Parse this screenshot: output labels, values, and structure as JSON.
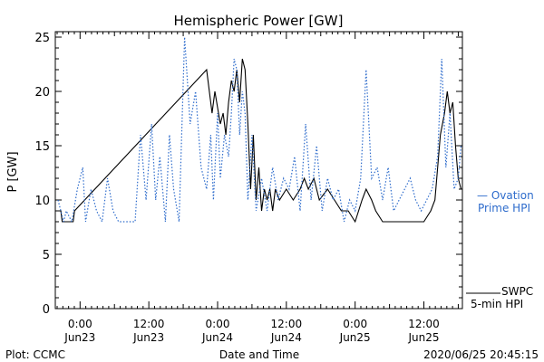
{
  "chart_data": {
    "type": "line",
    "title": "Hemispheric Power [GW]",
    "ylabel": "P [GW]",
    "xlabel": "Date and Time",
    "ylim": [
      0,
      25.5
    ],
    "xlim": [
      -0.18,
      2.78
    ],
    "x_units": "days from 2020/06/23 00:00 UT",
    "yticks": [
      0,
      5,
      10,
      15,
      20,
      25
    ],
    "xticks": [
      {
        "x": 0.0,
        "time": "0:00",
        "date": "Jun23"
      },
      {
        "x": 0.5,
        "time": "12:00",
        "date": "Jun23"
      },
      {
        "x": 1.0,
        "time": "0:00",
        "date": "Jun24"
      },
      {
        "x": 1.5,
        "time": "12:00",
        "date": "Jun24"
      },
      {
        "x": 2.0,
        "time": "0:00",
        "date": "Jun25"
      },
      {
        "x": 2.5,
        "time": "12:00",
        "date": "Jun25"
      }
    ],
    "grid": false,
    "legend_position": "right",
    "series": [
      {
        "name": "SWPC 5-min HPI",
        "color": "#000000",
        "style": "solid",
        "points": [
          [
            -0.18,
            9
          ],
          [
            -0.14,
            9
          ],
          [
            -0.13,
            8
          ],
          [
            -0.05,
            8
          ],
          [
            -0.04,
            9
          ],
          [
            0.92,
            22
          ],
          [
            0.96,
            18
          ],
          [
            0.98,
            20
          ],
          [
            1.02,
            17
          ],
          [
            1.04,
            18
          ],
          [
            1.06,
            16
          ],
          [
            1.08,
            19
          ],
          [
            1.1,
            21
          ],
          [
            1.12,
            20
          ],
          [
            1.14,
            22
          ],
          [
            1.16,
            19
          ],
          [
            1.18,
            23
          ],
          [
            1.2,
            22
          ],
          [
            1.22,
            17
          ],
          [
            1.24,
            11
          ],
          [
            1.26,
            16
          ],
          [
            1.28,
            10
          ],
          [
            1.3,
            13
          ],
          [
            1.32,
            9
          ],
          [
            1.34,
            11
          ],
          [
            1.36,
            10
          ],
          [
            1.38,
            11
          ],
          [
            1.4,
            9
          ],
          [
            1.42,
            11
          ],
          [
            1.45,
            10
          ],
          [
            1.5,
            11
          ],
          [
            1.55,
            10
          ],
          [
            1.6,
            11
          ],
          [
            1.63,
            12
          ],
          [
            1.66,
            11
          ],
          [
            1.7,
            12
          ],
          [
            1.74,
            10
          ],
          [
            1.8,
            11
          ],
          [
            1.85,
            10
          ],
          [
            1.9,
            9
          ],
          [
            1.95,
            9
          ],
          [
            2.0,
            8
          ],
          [
            2.05,
            10
          ],
          [
            2.08,
            11
          ],
          [
            2.12,
            10
          ],
          [
            2.15,
            9
          ],
          [
            2.2,
            8
          ],
          [
            2.25,
            8
          ],
          [
            2.3,
            8
          ],
          [
            2.35,
            8
          ],
          [
            2.4,
            8
          ],
          [
            2.45,
            8
          ],
          [
            2.5,
            8
          ],
          [
            2.55,
            9
          ],
          [
            2.58,
            10
          ],
          [
            2.6,
            13
          ],
          [
            2.62,
            16
          ],
          [
            2.65,
            18
          ],
          [
            2.67,
            20
          ],
          [
            2.69,
            18
          ],
          [
            2.71,
            19
          ],
          [
            2.73,
            15
          ],
          [
            2.75,
            12
          ],
          [
            2.77,
            11
          ]
        ]
      },
      {
        "name": "Ovation Prime HPI",
        "color": "#2e6ccc",
        "style": "dotted",
        "points": [
          [
            -0.16,
            10
          ],
          [
            -0.12,
            8
          ],
          [
            -0.1,
            9
          ],
          [
            -0.06,
            8
          ],
          [
            -0.02,
            11
          ],
          [
            0.02,
            13
          ],
          [
            0.04,
            8
          ],
          [
            0.08,
            11
          ],
          [
            0.12,
            9
          ],
          [
            0.16,
            8
          ],
          [
            0.2,
            12
          ],
          [
            0.24,
            9
          ],
          [
            0.28,
            8
          ],
          [
            0.32,
            8
          ],
          [
            0.36,
            8
          ],
          [
            0.4,
            8
          ],
          [
            0.44,
            16
          ],
          [
            0.48,
            10
          ],
          [
            0.52,
            17
          ],
          [
            0.55,
            10
          ],
          [
            0.58,
            14
          ],
          [
            0.62,
            8
          ],
          [
            0.65,
            16
          ],
          [
            0.68,
            11
          ],
          [
            0.72,
            8
          ],
          [
            0.76,
            25
          ],
          [
            0.8,
            17
          ],
          [
            0.84,
            20
          ],
          [
            0.88,
            13
          ],
          [
            0.92,
            11
          ],
          [
            0.95,
            16
          ],
          [
            0.97,
            10
          ],
          [
            1.0,
            18
          ],
          [
            1.02,
            12
          ],
          [
            1.05,
            16
          ],
          [
            1.08,
            14
          ],
          [
            1.1,
            18
          ],
          [
            1.12,
            23
          ],
          [
            1.14,
            22
          ],
          [
            1.16,
            16
          ],
          [
            1.18,
            20
          ],
          [
            1.2,
            18
          ],
          [
            1.22,
            10
          ],
          [
            1.25,
            16
          ],
          [
            1.28,
            9
          ],
          [
            1.32,
            12
          ],
          [
            1.36,
            9
          ],
          [
            1.4,
            13
          ],
          [
            1.44,
            10
          ],
          [
            1.48,
            12
          ],
          [
            1.52,
            11
          ],
          [
            1.56,
            14
          ],
          [
            1.6,
            9
          ],
          [
            1.64,
            17
          ],
          [
            1.68,
            10
          ],
          [
            1.72,
            15
          ],
          [
            1.76,
            9
          ],
          [
            1.8,
            12
          ],
          [
            1.84,
            10
          ],
          [
            1.88,
            11
          ],
          [
            1.92,
            8
          ],
          [
            1.96,
            10
          ],
          [
            2.0,
            9
          ],
          [
            2.04,
            12
          ],
          [
            2.08,
            22
          ],
          [
            2.12,
            12
          ],
          [
            2.16,
            13
          ],
          [
            2.2,
            10
          ],
          [
            2.24,
            13
          ],
          [
            2.28,
            9
          ],
          [
            2.32,
            10
          ],
          [
            2.36,
            11
          ],
          [
            2.4,
            12
          ],
          [
            2.44,
            10
          ],
          [
            2.48,
            9
          ],
          [
            2.52,
            10
          ],
          [
            2.56,
            11
          ],
          [
            2.6,
            14
          ],
          [
            2.63,
            23
          ],
          [
            2.66,
            13
          ],
          [
            2.69,
            18
          ],
          [
            2.72,
            11
          ],
          [
            2.75,
            12
          ],
          [
            2.77,
            15
          ]
        ]
      }
    ],
    "legend": {
      "ovation_line1": "— Ovation",
      "ovation_line2": "Prime HPI",
      "swpc_line1": "SWPC",
      "swpc_line2": "5-min HPI"
    }
  },
  "footer": {
    "plot_label": "Plot: CCMC",
    "xaxis_title": "Date and Time",
    "timestamp": "2020/06/25 20:45:15"
  }
}
